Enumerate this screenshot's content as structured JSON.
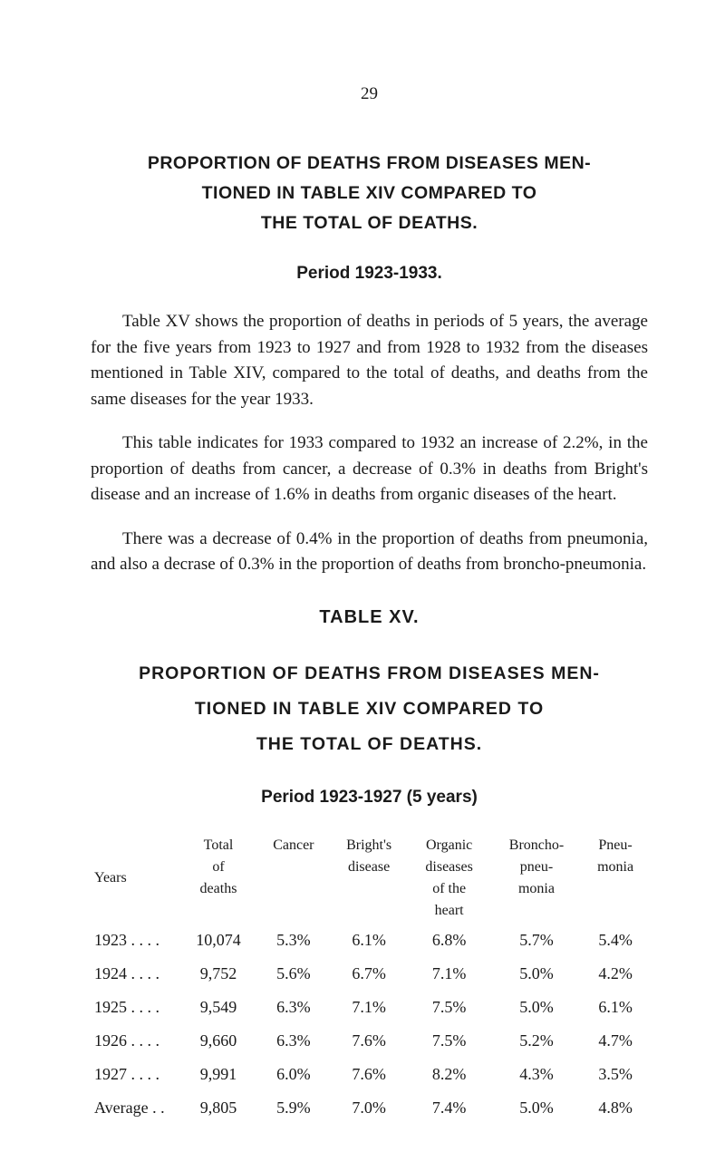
{
  "page_number": "29",
  "heading_main": "PROPORTION OF DEATHS FROM DISEASES MEN-\nTIONED IN TABLE XIV COMPARED TO\nTHE TOTAL OF DEATHS.",
  "period_label_1": "Period 1923-1933.",
  "para1": "Table XV shows the proportion of deaths in periods of 5 years, the average for the five years from 1923 to 1927 and from 1928 to 1932 from the diseases mentioned in Table XIV, compared to the total of deaths, and deaths from the same diseases for the year 1933.",
  "para2": "This table indicates for 1933 compared to 1932 an increase of 2.2%, in the proportion of deaths from cancer, a decrease of 0.3% in deaths from Bright's disease and an increase of 1.6% in deaths from organic diseases of the heart.",
  "para3": "There was a decrease of 0.4% in the proportion of deaths from pneumonia, and also a decrase of 0.3% in the proportion of deaths from broncho-pneumonia.",
  "table_label": "TABLE XV.",
  "heading_second": "PROPORTION OF DEATHS FROM DISEASES MEN-\nTIONED IN TABLE XIV COMPARED TO\nTHE TOTAL OF DEATHS.",
  "period_label_2": "Period 1923-1927 (5 years)",
  "table": {
    "headers": {
      "years": "Years",
      "total": "Total\nof\ndeaths",
      "cancer": "Cancer",
      "brights": "Bright's\ndisease",
      "organic": "Organic\ndiseases\nof the\nheart",
      "broncho": "Broncho-\npneu-\nmonia",
      "pneu": "Pneu-\nmonia"
    },
    "rows": [
      {
        "year": "1923 . .  . .",
        "total": "10,074",
        "cancer": "5.3%",
        "brights": "6.1%",
        "organic": "6.8%",
        "broncho": "5.7%",
        "pneu": "5.4%"
      },
      {
        "year": "1924 . .  . .",
        "total": "9,752",
        "cancer": "5.6%",
        "brights": "6.7%",
        "organic": "7.1%",
        "broncho": "5.0%",
        "pneu": "4.2%"
      },
      {
        "year": "1925 . .  . .",
        "total": "9,549",
        "cancer": "6.3%",
        "brights": "7.1%",
        "organic": "7.5%",
        "broncho": "5.0%",
        "pneu": "6.1%"
      },
      {
        "year": "1926 . .  . .",
        "total": "9,660",
        "cancer": "6.3%",
        "brights": "7.6%",
        "organic": "7.5%",
        "broncho": "5.2%",
        "pneu": "4.7%"
      },
      {
        "year": "1927 . .  . .",
        "total": "9,991",
        "cancer": "6.0%",
        "brights": "7.6%",
        "organic": "8.2%",
        "broncho": "4.3%",
        "pneu": "3.5%"
      },
      {
        "year": "Average . .",
        "total": "9,805",
        "cancer": "5.9%",
        "brights": "7.0%",
        "organic": "7.4%",
        "broncho": "5.0%",
        "pneu": "4.8%"
      }
    ]
  }
}
